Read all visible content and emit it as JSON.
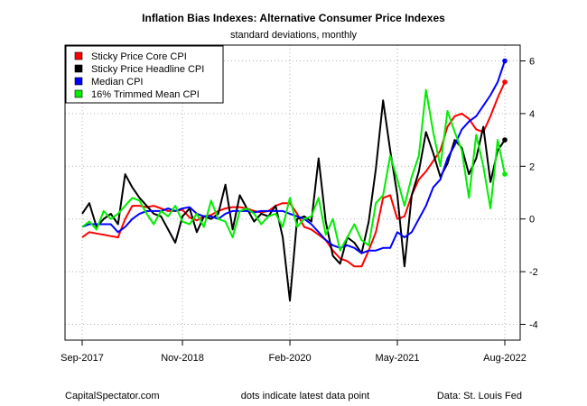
{
  "chart_data": {
    "type": "line",
    "title": "Inflation Bias Indexes: Alternative Consumer Price Indexes",
    "subtitle": "standard deviations, monthly",
    "footer_left": "CapitalSpectator.com",
    "footer_center": "dots indicate latest data point",
    "footer_right": "Data: St. Louis Fed",
    "x_tick_labels": [
      "Sep-2017",
      "Nov-2018",
      "Feb-2020",
      "May-2021",
      "Aug-2022"
    ],
    "x_tick_index": [
      0,
      14,
      29,
      44,
      59
    ],
    "y_ticks": [
      -4,
      -2,
      0,
      2,
      4,
      6
    ],
    "ylim": [
      -4.6,
      6.6
    ],
    "grid": true,
    "legend_position": "top-left",
    "series": [
      {
        "name": "Sticky Price Core CPI",
        "color": "#ff0000",
        "values": [
          -0.7,
          -0.5,
          -0.55,
          -0.6,
          -0.65,
          -0.7,
          0,
          0.5,
          0.5,
          0.45,
          0.5,
          0.4,
          0.3,
          0.3,
          0.35,
          0.05,
          -0.05,
          0.1,
          0.15,
          0.3,
          0.4,
          0.45,
          0.45,
          0.4,
          0.3,
          0.25,
          0.3,
          0.5,
          0.6,
          0.6,
          0.2,
          -0.3,
          -0.4,
          -0.6,
          -0.8,
          -1.2,
          -1.5,
          -1.6,
          -1.8,
          -1.8,
          -1.2,
          -0.5,
          0.8,
          0.9,
          0,
          0.1,
          0.9,
          1.5,
          1.8,
          2.2,
          2.6,
          3.5,
          3.9,
          4.0,
          3.8,
          3.4,
          3.3,
          3.9,
          4.6,
          5.2
        ]
      },
      {
        "name": "Sticky Price Headline CPI",
        "color": "#000000",
        "values": [
          0.2,
          0.6,
          -0.3,
          0,
          0.2,
          -0.2,
          1.7,
          1.2,
          0.8,
          0.5,
          0.2,
          0.1,
          -0.4,
          -0.9,
          0.1,
          0.4,
          -0.5,
          0.1,
          0,
          0.2,
          1.3,
          -0.4,
          0.9,
          0.4,
          -0.1,
          0.2,
          0.1,
          0.5,
          -0.7,
          -3.1,
          0,
          0.1,
          -0.1,
          2.3,
          -0.1,
          -1.4,
          -1.7,
          -0.7,
          -0.9,
          -1.3,
          -0.1,
          1.9,
          4.5,
          2.6,
          0.9,
          -1.8,
          0.9,
          1.8,
          3.3,
          2.5,
          1.6,
          2.1,
          3.0,
          2.7,
          1.7,
          2.3,
          3.5,
          1.4,
          2.6,
          3.0
        ]
      },
      {
        "name": "Median CPI",
        "color": "#0000ff",
        "values": [
          -0.3,
          -0.2,
          -0.2,
          -0.2,
          -0.2,
          -0.5,
          -0.3,
          0,
          0.2,
          0.3,
          0.3,
          0.3,
          0.4,
          0.3,
          0.4,
          0.45,
          0.2,
          0.1,
          0.1,
          0,
          0.2,
          0.3,
          0.3,
          0.3,
          0.25,
          0.3,
          0.3,
          0.3,
          0.3,
          0.2,
          0.1,
          0,
          -0.2,
          -0.5,
          -0.8,
          -1.0,
          -1.1,
          -1.0,
          -1.1,
          -1.3,
          -1.2,
          -1.2,
          -1.1,
          -1.1,
          -0.5,
          -0.7,
          -0.5,
          0,
          0.5,
          1.2,
          1.5,
          2.3,
          2.8,
          3.4,
          3.7,
          3.9,
          4.3,
          4.7,
          5.2,
          6.0
        ]
      },
      {
        "name": "16% Trimmed Mean CPI",
        "color": "#00ee00",
        "values": [
          -0.3,
          -0.1,
          -0.4,
          0.3,
          0,
          0.2,
          0.5,
          0.8,
          0.7,
          0.2,
          -0.2,
          0.3,
          0.1,
          0.5,
          -0.1,
          -0.2,
          0.2,
          -0.3,
          0.7,
          0,
          -0.1,
          -0.7,
          0.3,
          0.4,
          0.2,
          -0.2,
          0.1,
          0.2,
          -0.3,
          0.8,
          -0.3,
          0,
          0.1,
          0.8,
          -0.6,
          0,
          -1.2,
          -0.7,
          -0.2,
          -0.8,
          -1.0,
          0.6,
          0.9,
          2.4,
          1.5,
          0.5,
          1.6,
          2.4,
          4.9,
          3.3,
          2.0,
          4.1,
          3.3,
          2.6,
          0.8,
          3.2,
          2.0,
          0.4,
          3.0,
          1.7
        ]
      }
    ]
  }
}
